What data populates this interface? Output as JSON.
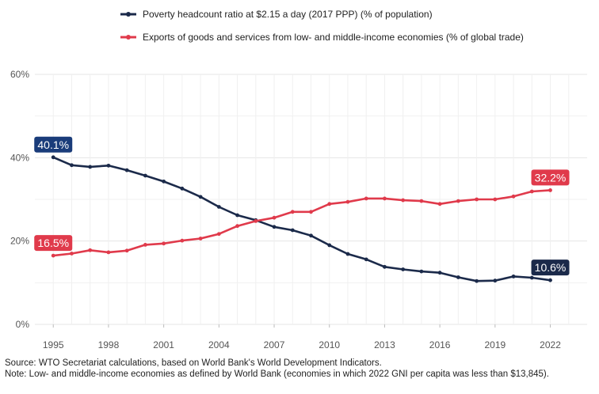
{
  "chart_data": {
    "type": "line",
    "title": "",
    "xlabel": "",
    "ylabel": "",
    "ylim": [
      0,
      60
    ],
    "xlim": [
      1994,
      2024
    ],
    "grid": true,
    "legend_position": "top",
    "y_ticks": [
      {
        "value": 0,
        "label": "0%"
      },
      {
        "value": 20,
        "label": "20%"
      },
      {
        "value": 40,
        "label": "40%"
      },
      {
        "value": 60,
        "label": "60%"
      }
    ],
    "x_ticks": [
      {
        "value": 1995,
        "label": "1995"
      },
      {
        "value": 1998,
        "label": "1998"
      },
      {
        "value": 2001,
        "label": "2001"
      },
      {
        "value": 2004,
        "label": "2004"
      },
      {
        "value": 2007,
        "label": "2007"
      },
      {
        "value": 2010,
        "label": "2010"
      },
      {
        "value": 2013,
        "label": "2013"
      },
      {
        "value": 2016,
        "label": "2016"
      },
      {
        "value": 2019,
        "label": "2019"
      },
      {
        "value": 2022,
        "label": "2022"
      }
    ],
    "x": [
      1995,
      1996,
      1997,
      1998,
      1999,
      2000,
      2001,
      2002,
      2003,
      2004,
      2005,
      2006,
      2007,
      2008,
      2009,
      2010,
      2011,
      2012,
      2013,
      2014,
      2015,
      2016,
      2017,
      2018,
      2019,
      2020,
      2021,
      2022
    ],
    "series": [
      {
        "name": "Poverty headcount ratio at $2.15 a day (2017 PPP) (% of population)",
        "color": "#1b2a4a",
        "values": [
          40.1,
          38.2,
          37.8,
          38.1,
          37.0,
          35.7,
          34.3,
          32.6,
          30.6,
          28.2,
          26.2,
          25.0,
          23.4,
          22.6,
          21.3,
          19.0,
          16.9,
          15.6,
          13.8,
          13.2,
          12.7,
          12.4,
          11.3,
          10.4,
          10.5,
          11.5,
          11.2,
          10.6
        ],
        "start_label": "40.1%",
        "end_label": "10.6%",
        "start_label_color": "#1a3c7a",
        "end_label_color": "#1b2a4a"
      },
      {
        "name": "Exports of goods and services from low- and middle-income economies (% of global trade)",
        "color": "#e03a4b",
        "values": [
          16.5,
          17.0,
          17.8,
          17.3,
          17.7,
          19.1,
          19.4,
          20.1,
          20.6,
          21.7,
          23.6,
          24.8,
          25.6,
          27.0,
          27.0,
          28.9,
          29.4,
          30.2,
          30.2,
          29.8,
          29.6,
          28.9,
          29.6,
          30.0,
          30.0,
          30.7,
          31.9,
          32.2
        ],
        "start_label": "16.5%",
        "end_label": "32.2%",
        "start_label_color": "#e03a4b",
        "end_label_color": "#e03a4b"
      }
    ]
  },
  "notes": {
    "source": "Source: WTO Secretariat calculations, based on World Bank's World Development Indicators.",
    "note": "Note: Low- and middle-income economies as defined by World Bank (economies in which 2022 GNI per capita was less than $13,845)."
  }
}
